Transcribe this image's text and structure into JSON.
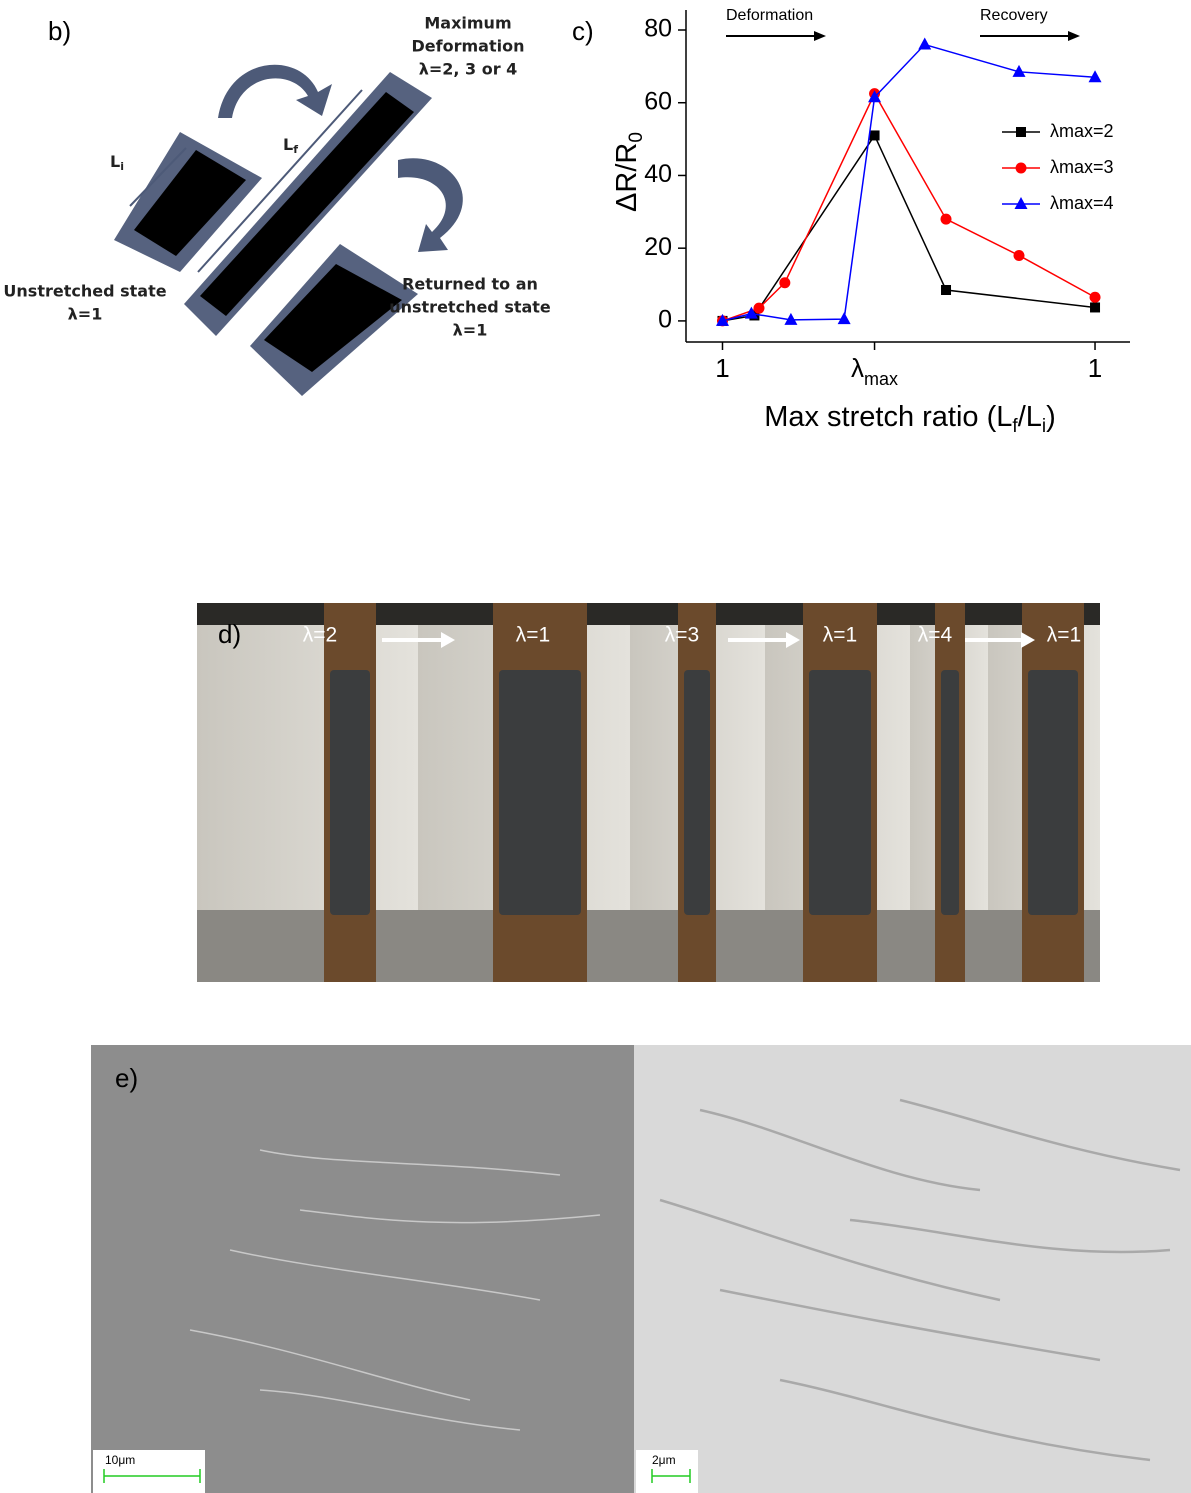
{
  "panel_b": {
    "label": "b)",
    "max_text": [
      "Maximum",
      "Deformation",
      "λ=2, 3 or 4"
    ],
    "unstretched_text": [
      "Unstretched state",
      "λ=1"
    ],
    "returned_text": [
      "Returned to an",
      "unstretched state",
      "λ=1"
    ],
    "li": {
      "main": "L",
      "sub": "i"
    },
    "lf": {
      "main": "L",
      "sub": "f"
    }
  },
  "chart_data": {
    "type": "line",
    "panel_label": "c)",
    "ylabel_parts": [
      {
        "text": "ΔR/R"
      },
      {
        "text": "0",
        "sub": true
      }
    ],
    "xlabel_parts": [
      {
        "text": "Max stretch ratio (L"
      },
      {
        "text": "f",
        "sub": true
      },
      {
        "text": "/L"
      },
      {
        "text": "i",
        "sub": true
      },
      {
        "text": ")"
      }
    ],
    "annotations": [
      "Deformation",
      "Recovery"
    ],
    "xlim": [
      -0.24,
      2.68
    ],
    "ylim": [
      -5.8,
      85.5
    ],
    "xticks": [
      {
        "value": 0,
        "label": "1"
      },
      {
        "value": 1,
        "label": "λ",
        "sub": "max"
      },
      {
        "value": 2.45,
        "label": "1"
      }
    ],
    "yticks": [
      0,
      20,
      40,
      60,
      80
    ],
    "legend": "upper-right",
    "series": [
      {
        "name": "λmax=2",
        "color": "#000000",
        "marker": "square",
        "x": [
          0,
          0.21,
          1,
          1.47,
          2.45
        ],
        "values": [
          0,
          1.5,
          51,
          8.5,
          3.7
        ]
      },
      {
        "name": "λmax=3",
        "color": "#ff0000",
        "marker": "circle",
        "x": [
          0,
          0.24,
          0.41,
          1,
          1.47,
          1.95,
          2.45
        ],
        "values": [
          0,
          3.5,
          10.5,
          62.5,
          28,
          18,
          6.5
        ]
      },
      {
        "name": "λmax=4",
        "color": "#0000ff",
        "marker": "triangle",
        "x": [
          0,
          0.19,
          0.45,
          0.8,
          1,
          1.33,
          1.95,
          2.45
        ],
        "values": [
          0,
          2,
          0.3,
          0.5,
          61.5,
          76,
          68.5,
          67
        ]
      }
    ]
  },
  "panel_d": {
    "label": "d)",
    "frames": [
      "λ=2",
      "λ=1",
      "λ=3",
      "λ=1",
      "λ=4",
      "λ=1"
    ]
  },
  "panel_e": {
    "label": "e)",
    "scale_bars": [
      "10μm",
      "2μm"
    ]
  }
}
